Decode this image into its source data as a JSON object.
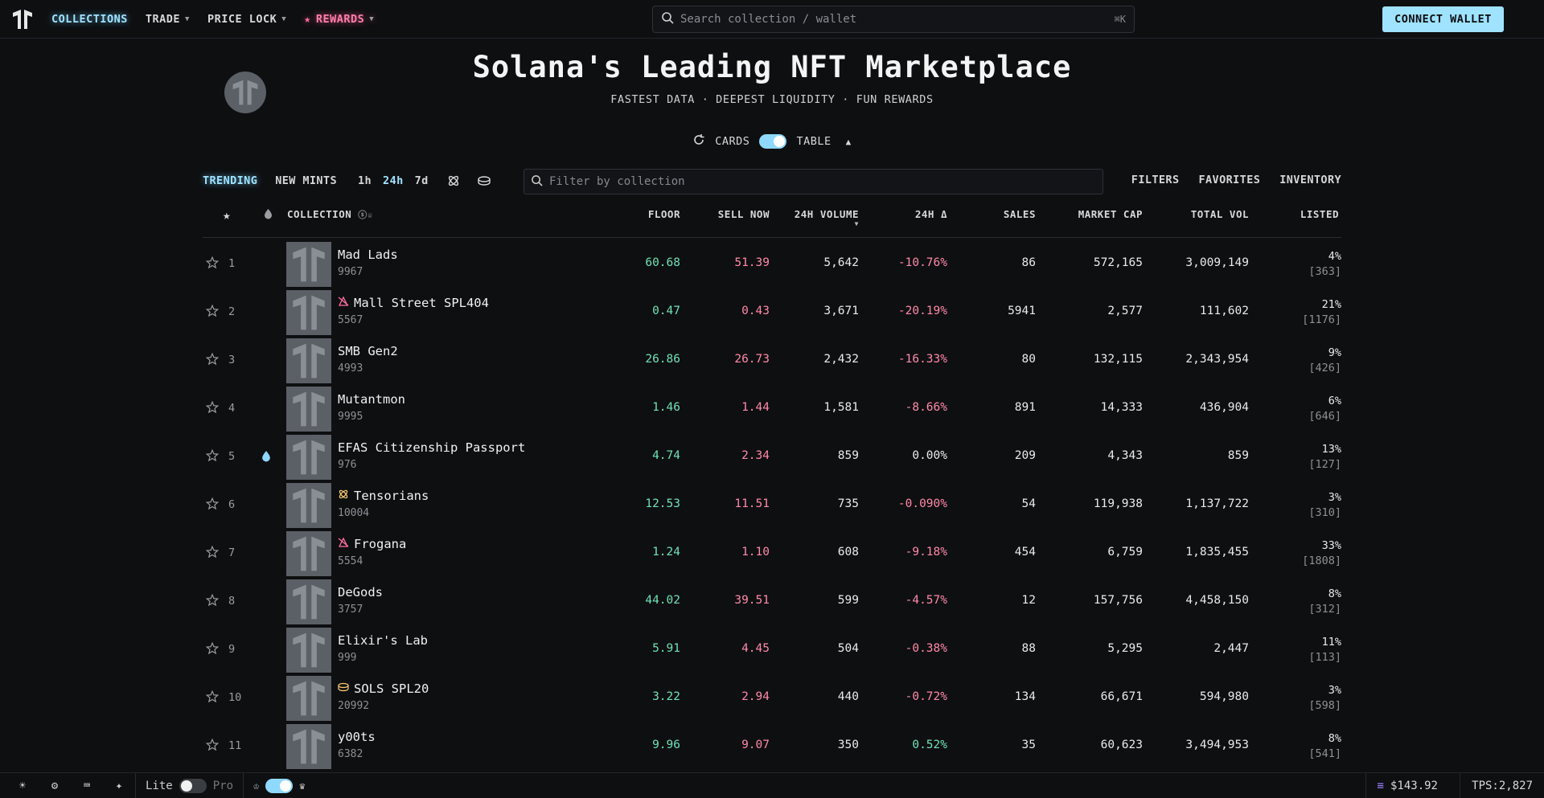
{
  "nav": {
    "items": [
      {
        "label": "COLLECTIONS",
        "active": true,
        "chevron": false
      },
      {
        "label": "TRADE",
        "active": false,
        "chevron": true
      },
      {
        "label": "PRICE LOCK",
        "active": false,
        "chevron": true
      },
      {
        "label": "REWARDS",
        "active": false,
        "chevron": true
      }
    ],
    "search_placeholder": "Search collection / wallet",
    "search_shortcut": "⌘K",
    "connect_label": "CONNECT WALLET"
  },
  "hero": {
    "title": "Solana's Leading NFT Marketplace",
    "subtitle": "FASTEST DATA · DEEPEST LIQUIDITY · FUN REWARDS"
  },
  "view_toggle": {
    "left": "CARDS",
    "right": "TABLE"
  },
  "filters": {
    "tabs": [
      "TRENDING",
      "NEW MINTS"
    ],
    "timeframes": [
      "1h",
      "24h",
      "7d"
    ],
    "active_timeframe": "24h",
    "filter_placeholder": "Filter by collection",
    "right_links": [
      "FILTERS",
      "FAVORITES",
      "INVENTORY"
    ]
  },
  "table": {
    "headers": {
      "collection": "COLLECTION",
      "floor": "FLOOR",
      "sell_now": "SELL NOW",
      "volume": "24H VOLUME",
      "change": "24H Δ",
      "sales": "SALES",
      "mcap": "MARKET CAP",
      "total_vol": "TOTAL VOL",
      "listed": "LISTED"
    },
    "rows": [
      {
        "rank": "1",
        "name": "Mad Lads",
        "badge": "",
        "supply": "9967",
        "floor": "60.68",
        "sell_now": "51.39",
        "volume": "5,642",
        "change": "-10.76%",
        "change_dir": "down",
        "sales": "86",
        "mcap": "572,165",
        "total_vol": "3,009,149",
        "listed_pct": "4%",
        "listed_cnt": "[363]",
        "drop": false
      },
      {
        "rank": "2",
        "name": "Mall Street SPL404",
        "badge": "spl404",
        "supply": "5567",
        "floor": "0.47",
        "sell_now": "0.43",
        "volume": "3,671",
        "change": "-20.19%",
        "change_dir": "down",
        "sales": "5941",
        "mcap": "2,577",
        "total_vol": "111,602",
        "listed_pct": "21%",
        "listed_cnt": "[1176]",
        "drop": false
      },
      {
        "rank": "3",
        "name": "SMB Gen2",
        "badge": "",
        "supply": "4993",
        "floor": "26.86",
        "sell_now": "26.73",
        "volume": "2,432",
        "change": "-16.33%",
        "change_dir": "down",
        "sales": "80",
        "mcap": "132,115",
        "total_vol": "2,343,954",
        "listed_pct": "9%",
        "listed_cnt": "[426]",
        "drop": false
      },
      {
        "rank": "4",
        "name": "Mutantmon",
        "badge": "",
        "supply": "9995",
        "floor": "1.46",
        "sell_now": "1.44",
        "volume": "1,581",
        "change": "-8.66%",
        "change_dir": "down",
        "sales": "891",
        "mcap": "14,333",
        "total_vol": "436,904",
        "listed_pct": "6%",
        "listed_cnt": "[646]",
        "drop": false
      },
      {
        "rank": "5",
        "name": "EFAS Citizenship Passport",
        "badge": "",
        "supply": "976",
        "floor": "4.74",
        "sell_now": "2.34",
        "volume": "859",
        "change": "0.00%",
        "change_dir": "flat",
        "sales": "209",
        "mcap": "4,343",
        "total_vol": "859",
        "listed_pct": "13%",
        "listed_cnt": "[127]",
        "drop": true
      },
      {
        "rank": "6",
        "name": "Tensorians",
        "badge": "compressed",
        "supply": "10004",
        "floor": "12.53",
        "sell_now": "11.51",
        "volume": "735",
        "change": "-0.090%",
        "change_dir": "down",
        "sales": "54",
        "mcap": "119,938",
        "total_vol": "1,137,722",
        "listed_pct": "3%",
        "listed_cnt": "[310]",
        "drop": false
      },
      {
        "rank": "7",
        "name": "Frogana",
        "badge": "spl404",
        "supply": "5554",
        "floor": "1.24",
        "sell_now": "1.10",
        "volume": "608",
        "change": "-9.18%",
        "change_dir": "down",
        "sales": "454",
        "mcap": "6,759",
        "total_vol": "1,835,455",
        "listed_pct": "33%",
        "listed_cnt": "[1808]",
        "drop": false
      },
      {
        "rank": "8",
        "name": "DeGods",
        "badge": "",
        "supply": "3757",
        "floor": "44.02",
        "sell_now": "39.51",
        "volume": "599",
        "change": "-4.57%",
        "change_dir": "down",
        "sales": "12",
        "mcap": "157,756",
        "total_vol": "4,458,150",
        "listed_pct": "8%",
        "listed_cnt": "[312]",
        "drop": false
      },
      {
        "rank": "9",
        "name": "Elixir's Lab",
        "badge": "",
        "supply": "999",
        "floor": "5.91",
        "sell_now": "4.45",
        "volume": "504",
        "change": "-0.38%",
        "change_dir": "down",
        "sales": "88",
        "mcap": "5,295",
        "total_vol": "2,447",
        "listed_pct": "11%",
        "listed_cnt": "[113]",
        "drop": false
      },
      {
        "rank": "10",
        "name": "SOLS SPL20",
        "badge": "spl20",
        "supply": "20992",
        "floor": "3.22",
        "sell_now": "2.94",
        "volume": "440",
        "change": "-0.72%",
        "change_dir": "down",
        "sales": "134",
        "mcap": "66,671",
        "total_vol": "594,980",
        "listed_pct": "3%",
        "listed_cnt": "[598]",
        "drop": false
      },
      {
        "rank": "11",
        "name": "y00ts",
        "badge": "",
        "supply": "6382",
        "floor": "9.96",
        "sell_now": "9.07",
        "volume": "350",
        "change": "0.52%",
        "change_dir": "up",
        "sales": "35",
        "mcap": "60,623",
        "total_vol": "3,494,953",
        "listed_pct": "8%",
        "listed_cnt": "[541]",
        "drop": false
      }
    ]
  },
  "bottom": {
    "lite": "Lite",
    "pro": "Pro",
    "sol_price": "$143.92",
    "tps": "TPS:2,827"
  },
  "colors": {
    "accent": "#9fe3ff",
    "positive": "#6fe3b5",
    "negative": "#ff8aa8",
    "background": "#0e0f11"
  }
}
